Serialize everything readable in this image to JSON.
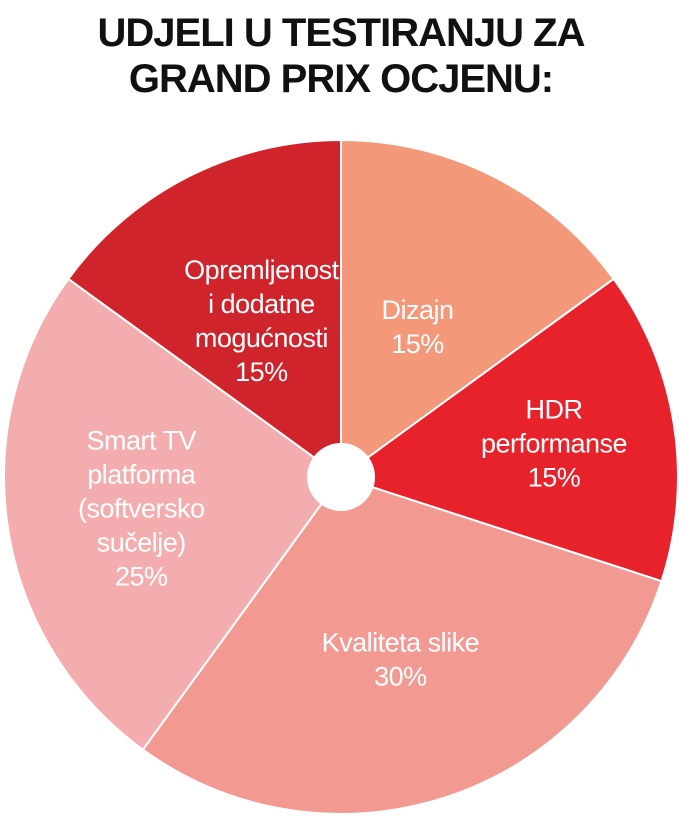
{
  "title": {
    "line1": "UDJELI U TESTIRANJU ZA",
    "line2": "GRAND PRIX OCJENU:"
  },
  "chart_data": {
    "type": "pie",
    "title": "UDJELI U TESTIRANJU ZA GRAND PRIX OCJENU:",
    "legend": "none (labels inside slices)",
    "slices": [
      {
        "label": [
          "Dizajn"
        ],
        "value": 15,
        "value_label": "15%",
        "color": "#F4987A"
      },
      {
        "label": [
          "HDR",
          "performanse"
        ],
        "value": 15,
        "value_label": "15%",
        "color": "#E8222B"
      },
      {
        "label": [
          "Kvaliteta slike"
        ],
        "value": 30,
        "value_label": "30%",
        "color": "#F29A92"
      },
      {
        "label": [
          "Smart TV",
          "platforma",
          "(softversko",
          "sučelje)"
        ],
        "value": 25,
        "value_label": "25%",
        "color": "#F4ADAE"
      },
      {
        "label": [
          "Opremljenost",
          "i dodatne",
          "mogućnosti"
        ],
        "value": 15,
        "value_label": "15%",
        "color": "#D0242D"
      }
    ]
  }
}
